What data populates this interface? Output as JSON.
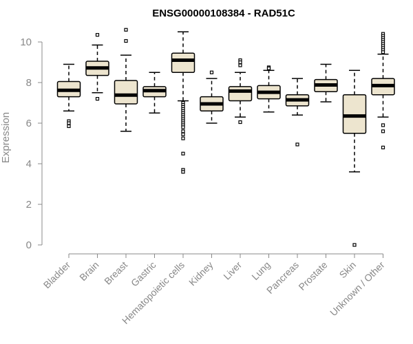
{
  "colors": {
    "box_fill": "#ede5cf",
    "box_stroke": "#000000",
    "axis": "#888888",
    "text": "#888888",
    "title": "#000000"
  },
  "chart_data": {
    "type": "boxplot",
    "title": "ENSG00000108384 - RAD51C",
    "xlabel": "",
    "ylabel": "Expression",
    "ylim": [
      0,
      10.5
    ],
    "yticks": [
      0,
      2,
      4,
      6,
      8,
      10
    ],
    "grid": false,
    "legend": "none",
    "categories": [
      "Bladder",
      "Brain",
      "Breast",
      "Gastric",
      "Hematopoietic cells",
      "Kidney",
      "Liver",
      "Lung",
      "Pancreas",
      "Prostate",
      "Skin",
      "Unknown / Other"
    ],
    "boxes": [
      {
        "category": "Bladder",
        "whisker_low": 6.6,
        "q1": 7.3,
        "median": 7.62,
        "q3": 8.05,
        "whisker_high": 8.9,
        "outliers": [
          6.1,
          6.0,
          5.85
        ]
      },
      {
        "category": "Brain",
        "whisker_low": 7.5,
        "q1": 8.35,
        "median": 8.72,
        "q3": 9.05,
        "whisker_high": 9.85,
        "outliers": [
          10.35,
          7.2
        ]
      },
      {
        "category": "Breast",
        "whisker_low": 5.6,
        "q1": 6.95,
        "median": 7.38,
        "q3": 8.1,
        "whisker_high": 9.35,
        "outliers": [
          10.6,
          10.05
        ]
      },
      {
        "category": "Gastric",
        "whisker_low": 6.5,
        "q1": 7.3,
        "median": 7.6,
        "q3": 7.8,
        "whisker_high": 8.5,
        "outliers": []
      },
      {
        "category": "Hematopoietic cells",
        "whisker_low": 7.1,
        "q1": 8.5,
        "median": 9.1,
        "q3": 9.45,
        "whisker_high": 10.5,
        "outliers": [
          7.0,
          6.9,
          6.8,
          6.7,
          6.6,
          6.5,
          6.4,
          6.3,
          6.2,
          6.1,
          6.0,
          5.9,
          5.8,
          5.6,
          5.45,
          5.25,
          4.5,
          3.7,
          3.6
        ]
      },
      {
        "category": "Kidney",
        "whisker_low": 6.0,
        "q1": 6.6,
        "median": 6.95,
        "q3": 7.3,
        "whisker_high": 8.2,
        "outliers": [
          8.5
        ]
      },
      {
        "category": "Liver",
        "whisker_low": 6.3,
        "q1": 7.1,
        "median": 7.58,
        "q3": 7.8,
        "whisker_high": 8.5,
        "outliers": [
          9.1,
          9.0,
          8.85,
          6.05
        ]
      },
      {
        "category": "Lung",
        "whisker_low": 6.55,
        "q1": 7.2,
        "median": 7.52,
        "q3": 7.85,
        "whisker_high": 8.6,
        "outliers": [
          8.75,
          8.7
        ]
      },
      {
        "category": "Pancreas",
        "whisker_low": 6.4,
        "q1": 6.85,
        "median": 7.15,
        "q3": 7.4,
        "whisker_high": 8.2,
        "outliers": [
          4.95
        ]
      },
      {
        "category": "Prostate",
        "whisker_low": 7.05,
        "q1": 7.55,
        "median": 7.88,
        "q3": 8.15,
        "whisker_high": 8.9,
        "outliers": []
      },
      {
        "category": "Skin",
        "whisker_low": 3.6,
        "q1": 5.5,
        "median": 6.35,
        "q3": 7.4,
        "whisker_high": 8.6,
        "outliers": [
          0.0
        ]
      },
      {
        "category": "Unknown / Other",
        "whisker_low": 6.3,
        "q1": 7.4,
        "median": 7.85,
        "q3": 8.2,
        "whisker_high": 9.4,
        "outliers": [
          10.4,
          10.3,
          10.2,
          10.1,
          10.0,
          9.9,
          9.8,
          9.7,
          9.6,
          9.5,
          5.9,
          5.6,
          4.8
        ]
      }
    ]
  }
}
